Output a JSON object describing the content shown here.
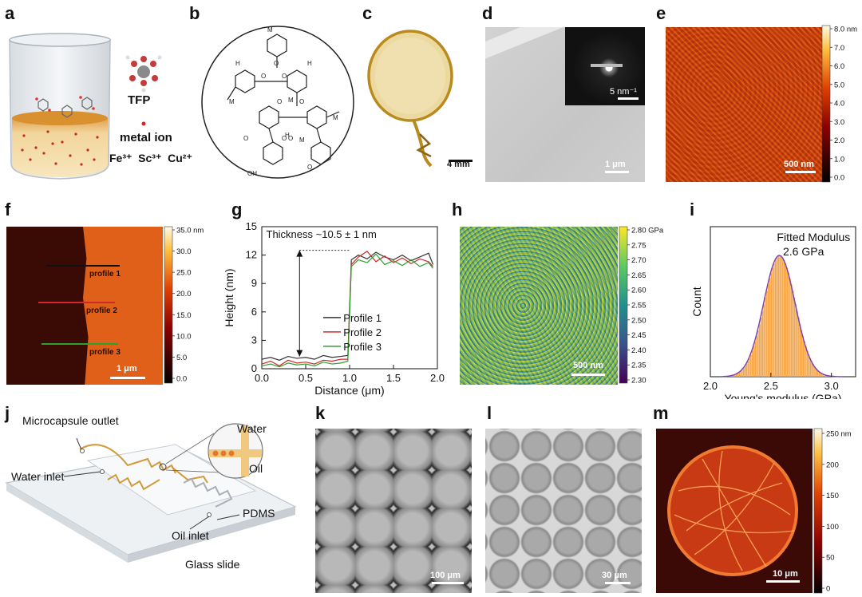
{
  "panels": {
    "a": {
      "label": "a",
      "tfp": "TFP",
      "metal_ion": "metal ion",
      "ions": [
        "Fe³⁺",
        "Sc³⁺",
        "Cu²⁺"
      ]
    },
    "b": {
      "label": "b"
    },
    "c": {
      "label": "c",
      "scale": "4 mm"
    },
    "d": {
      "label": "d",
      "scale": "1 μm",
      "inset_scale": "5 nm⁻¹"
    },
    "e": {
      "label": "e",
      "scale": "500 nm",
      "colorbar": {
        "ticks": [
          "8.0 nm",
          "7.0",
          "6.0",
          "5.0",
          "4.0",
          "3.0",
          "2.0",
          "1.0",
          "0.0"
        ]
      }
    },
    "f": {
      "label": "f",
      "scale": "1 μm",
      "profiles": [
        "profile 1",
        "profile 2",
        "profile 3"
      ],
      "colorbar": {
        "ticks": [
          "35.0 nm",
          "30.0",
          "25.0",
          "20.0",
          "15.0",
          "10.0",
          "5.0",
          "0.0"
        ]
      }
    },
    "g": {
      "label": "g",
      "annotation": "Thickness ~10.5 ± 1 nm",
      "xlabel": "Distance (μm)",
      "ylabel": "Height (nm)",
      "legend": [
        "Profile 1",
        "Profile 2",
        "Profile 3"
      ],
      "xticks": [
        "0.0",
        "0.5",
        "1.0",
        "1.5",
        "2.0"
      ],
      "yticks": [
        "0",
        "3",
        "6",
        "9",
        "12",
        "15"
      ]
    },
    "h": {
      "label": "h",
      "scale": "500 nm",
      "colorbar": {
        "ticks": [
          "2.80 GPa",
          "2.75",
          "2.70",
          "2.65",
          "2.60",
          "2.55",
          "2.50",
          "2.45",
          "2.40",
          "2.35",
          "2.30"
        ]
      }
    },
    "i": {
      "label": "i",
      "title": "Fitted Modulus",
      "value": "2.6 GPa",
      "xlabel": "Young's modulus (GPa)",
      "ylabel": "Count",
      "xticks": [
        "2.0",
        "2.5",
        "3.0"
      ]
    },
    "j": {
      "label": "j",
      "labels": {
        "outlet": "Microcapsule outlet",
        "water_inlet": "Water inlet",
        "oil_inlet": "Oil inlet",
        "pdms": "PDMS",
        "glass": "Glass slide",
        "water": "Water",
        "oil": "Oil"
      }
    },
    "k": {
      "label": "k",
      "scale": "100 μm"
    },
    "l": {
      "label": "l",
      "scale": "30 μm"
    },
    "m": {
      "label": "m",
      "scale": "10 μm",
      "colorbar": {
        "ticks": [
          "250 nm",
          "200",
          "150",
          "100",
          "50",
          "0"
        ]
      }
    }
  },
  "chart_data": [
    {
      "panel": "g",
      "type": "line",
      "title": "",
      "xlabel": "Distance (μm)",
      "ylabel": "Height (nm)",
      "xlim": [
        0,
        2.0
      ],
      "ylim": [
        0,
        15
      ],
      "series": [
        {
          "name": "Profile 1",
          "color": "#333333",
          "x": [
            0,
            0.1,
            0.2,
            0.3,
            0.4,
            0.5,
            0.6,
            0.7,
            0.8,
            0.9,
            0.98,
            1.02,
            1.1,
            1.2,
            1.3,
            1.4,
            1.5,
            1.6,
            1.7,
            1.8,
            1.9,
            1.95
          ],
          "y": [
            1.0,
            1.2,
            0.9,
            1.3,
            1.1,
            1.2,
            1.0,
            1.4,
            1.2,
            1.3,
            1.4,
            11.5,
            12.0,
            11.6,
            12.3,
            11.8,
            11.5,
            12.0,
            11.4,
            11.8,
            12.2,
            11.0
          ]
        },
        {
          "name": "Profile 2",
          "color": "#d62728",
          "x": [
            0,
            0.1,
            0.2,
            0.3,
            0.4,
            0.5,
            0.6,
            0.7,
            0.8,
            0.9,
            0.98,
            1.02,
            1.1,
            1.2,
            1.3,
            1.4,
            1.5,
            1.6,
            1.7,
            1.8,
            1.9,
            1.95
          ],
          "y": [
            0.5,
            0.8,
            0.3,
            0.9,
            0.6,
            0.7,
            0.5,
            0.9,
            0.8,
            1.0,
            1.0,
            11.0,
            11.8,
            12.4,
            11.3,
            11.9,
            11.2,
            11.7,
            11.1,
            11.6,
            11.3,
            10.8
          ]
        },
        {
          "name": "Profile 3",
          "color": "#2ca02c",
          "x": [
            0,
            0.1,
            0.2,
            0.3,
            0.4,
            0.5,
            0.6,
            0.7,
            0.8,
            0.9,
            0.98,
            1.02,
            1.1,
            1.2,
            1.3,
            1.4,
            1.5,
            1.6,
            1.7,
            1.8,
            1.9,
            1.95
          ],
          "y": [
            0.3,
            0.5,
            0.2,
            0.6,
            0.4,
            0.5,
            0.3,
            0.7,
            0.5,
            0.6,
            0.8,
            10.8,
            11.5,
            11.2,
            12.1,
            11.0,
            11.4,
            10.9,
            11.5,
            10.8,
            11.2,
            10.6
          ]
        }
      ]
    },
    {
      "panel": "i",
      "type": "bar",
      "title": "Fitted Modulus",
      "xlabel": "Young's modulus (GPa)",
      "ylabel": "Count",
      "xlim": [
        2.0,
        3.2
      ],
      "mean": 2.57,
      "sd": 0.13
    }
  ]
}
